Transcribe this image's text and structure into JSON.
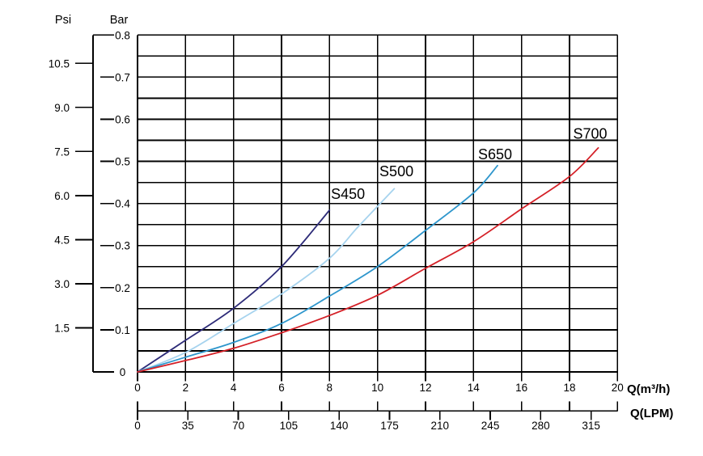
{
  "chart_data": {
    "type": "line",
    "title": "",
    "grid": "on",
    "y_axes": [
      {
        "id": "psi",
        "label": "Psi",
        "tick_labels": [
          "1.5",
          "3.0",
          "4.5",
          "6.0",
          "7.5",
          "9.0",
          "10.5"
        ],
        "tick_values": [
          1.5,
          3.0,
          4.5,
          6.0,
          7.5,
          9.0,
          10.5
        ]
      },
      {
        "id": "bar",
        "label": "Bar",
        "tick_labels": [
          "0",
          "0.1",
          "0.2",
          "0.3",
          "0.4",
          "0.5",
          "0.6",
          "0.7",
          "0.8"
        ],
        "tick_values": [
          0,
          0.1,
          0.2,
          0.3,
          0.4,
          0.5,
          0.6,
          0.7,
          0.8
        ],
        "range": [
          0,
          0.8
        ],
        "minor_step": 0.05
      }
    ],
    "x_axes": [
      {
        "id": "m3h",
        "label": "Q(m³/h)",
        "tick_labels": [
          "0",
          "2",
          "4",
          "6",
          "8",
          "10",
          "12",
          "14",
          "16",
          "18",
          "20"
        ],
        "tick_values": [
          0,
          2,
          4,
          6,
          8,
          10,
          12,
          14,
          16,
          18,
          20
        ],
        "range": [
          0,
          20
        ]
      },
      {
        "id": "lpm",
        "label": "Q(LPM)",
        "tick_labels": [
          "0",
          "35",
          "70",
          "105",
          "140",
          "175",
          "210",
          "245",
          "280",
          "315"
        ],
        "tick_values": [
          0,
          35,
          70,
          105,
          140,
          175,
          210,
          245,
          280,
          315
        ],
        "lpm_per_m3h": 16.6667
      }
    ],
    "series": [
      {
        "name": "S450",
        "color": "#2d2b78",
        "points": [
          [
            0,
            0
          ],
          [
            2,
            0.075
          ],
          [
            4,
            0.151
          ],
          [
            6,
            0.25
          ],
          [
            8,
            0.384
          ]
        ],
        "label_at": [
          8.77,
          0.422
        ]
      },
      {
        "name": "S500",
        "color": "#a6d3ee",
        "points": [
          [
            0,
            0
          ],
          [
            2,
            0.046
          ],
          [
            4,
            0.115
          ],
          [
            6,
            0.185
          ],
          [
            8,
            0.27
          ],
          [
            9.2,
            0.345
          ],
          [
            10.7,
            0.435
          ]
        ],
        "label_at": [
          10.79,
          0.476
        ]
      },
      {
        "name": "S650",
        "color": "#2e96cc",
        "points": [
          [
            0,
            0
          ],
          [
            2,
            0.035
          ],
          [
            4,
            0.07
          ],
          [
            6,
            0.115
          ],
          [
            8,
            0.18
          ],
          [
            10,
            0.25
          ],
          [
            12,
            0.336
          ],
          [
            14,
            0.425
          ],
          [
            15,
            0.49
          ]
        ],
        "label_at": [
          14.9,
          0.516
        ]
      },
      {
        "name": "S700",
        "color": "#d42027",
        "points": [
          [
            0,
            0
          ],
          [
            2,
            0.027
          ],
          [
            4,
            0.056
          ],
          [
            6,
            0.093
          ],
          [
            8,
            0.134
          ],
          [
            10,
            0.182
          ],
          [
            12,
            0.246
          ],
          [
            14,
            0.309
          ],
          [
            16,
            0.387
          ],
          [
            18,
            0.464
          ],
          [
            19.2,
            0.532
          ]
        ],
        "label_at": [
          18.86,
          0.565
        ]
      }
    ]
  }
}
